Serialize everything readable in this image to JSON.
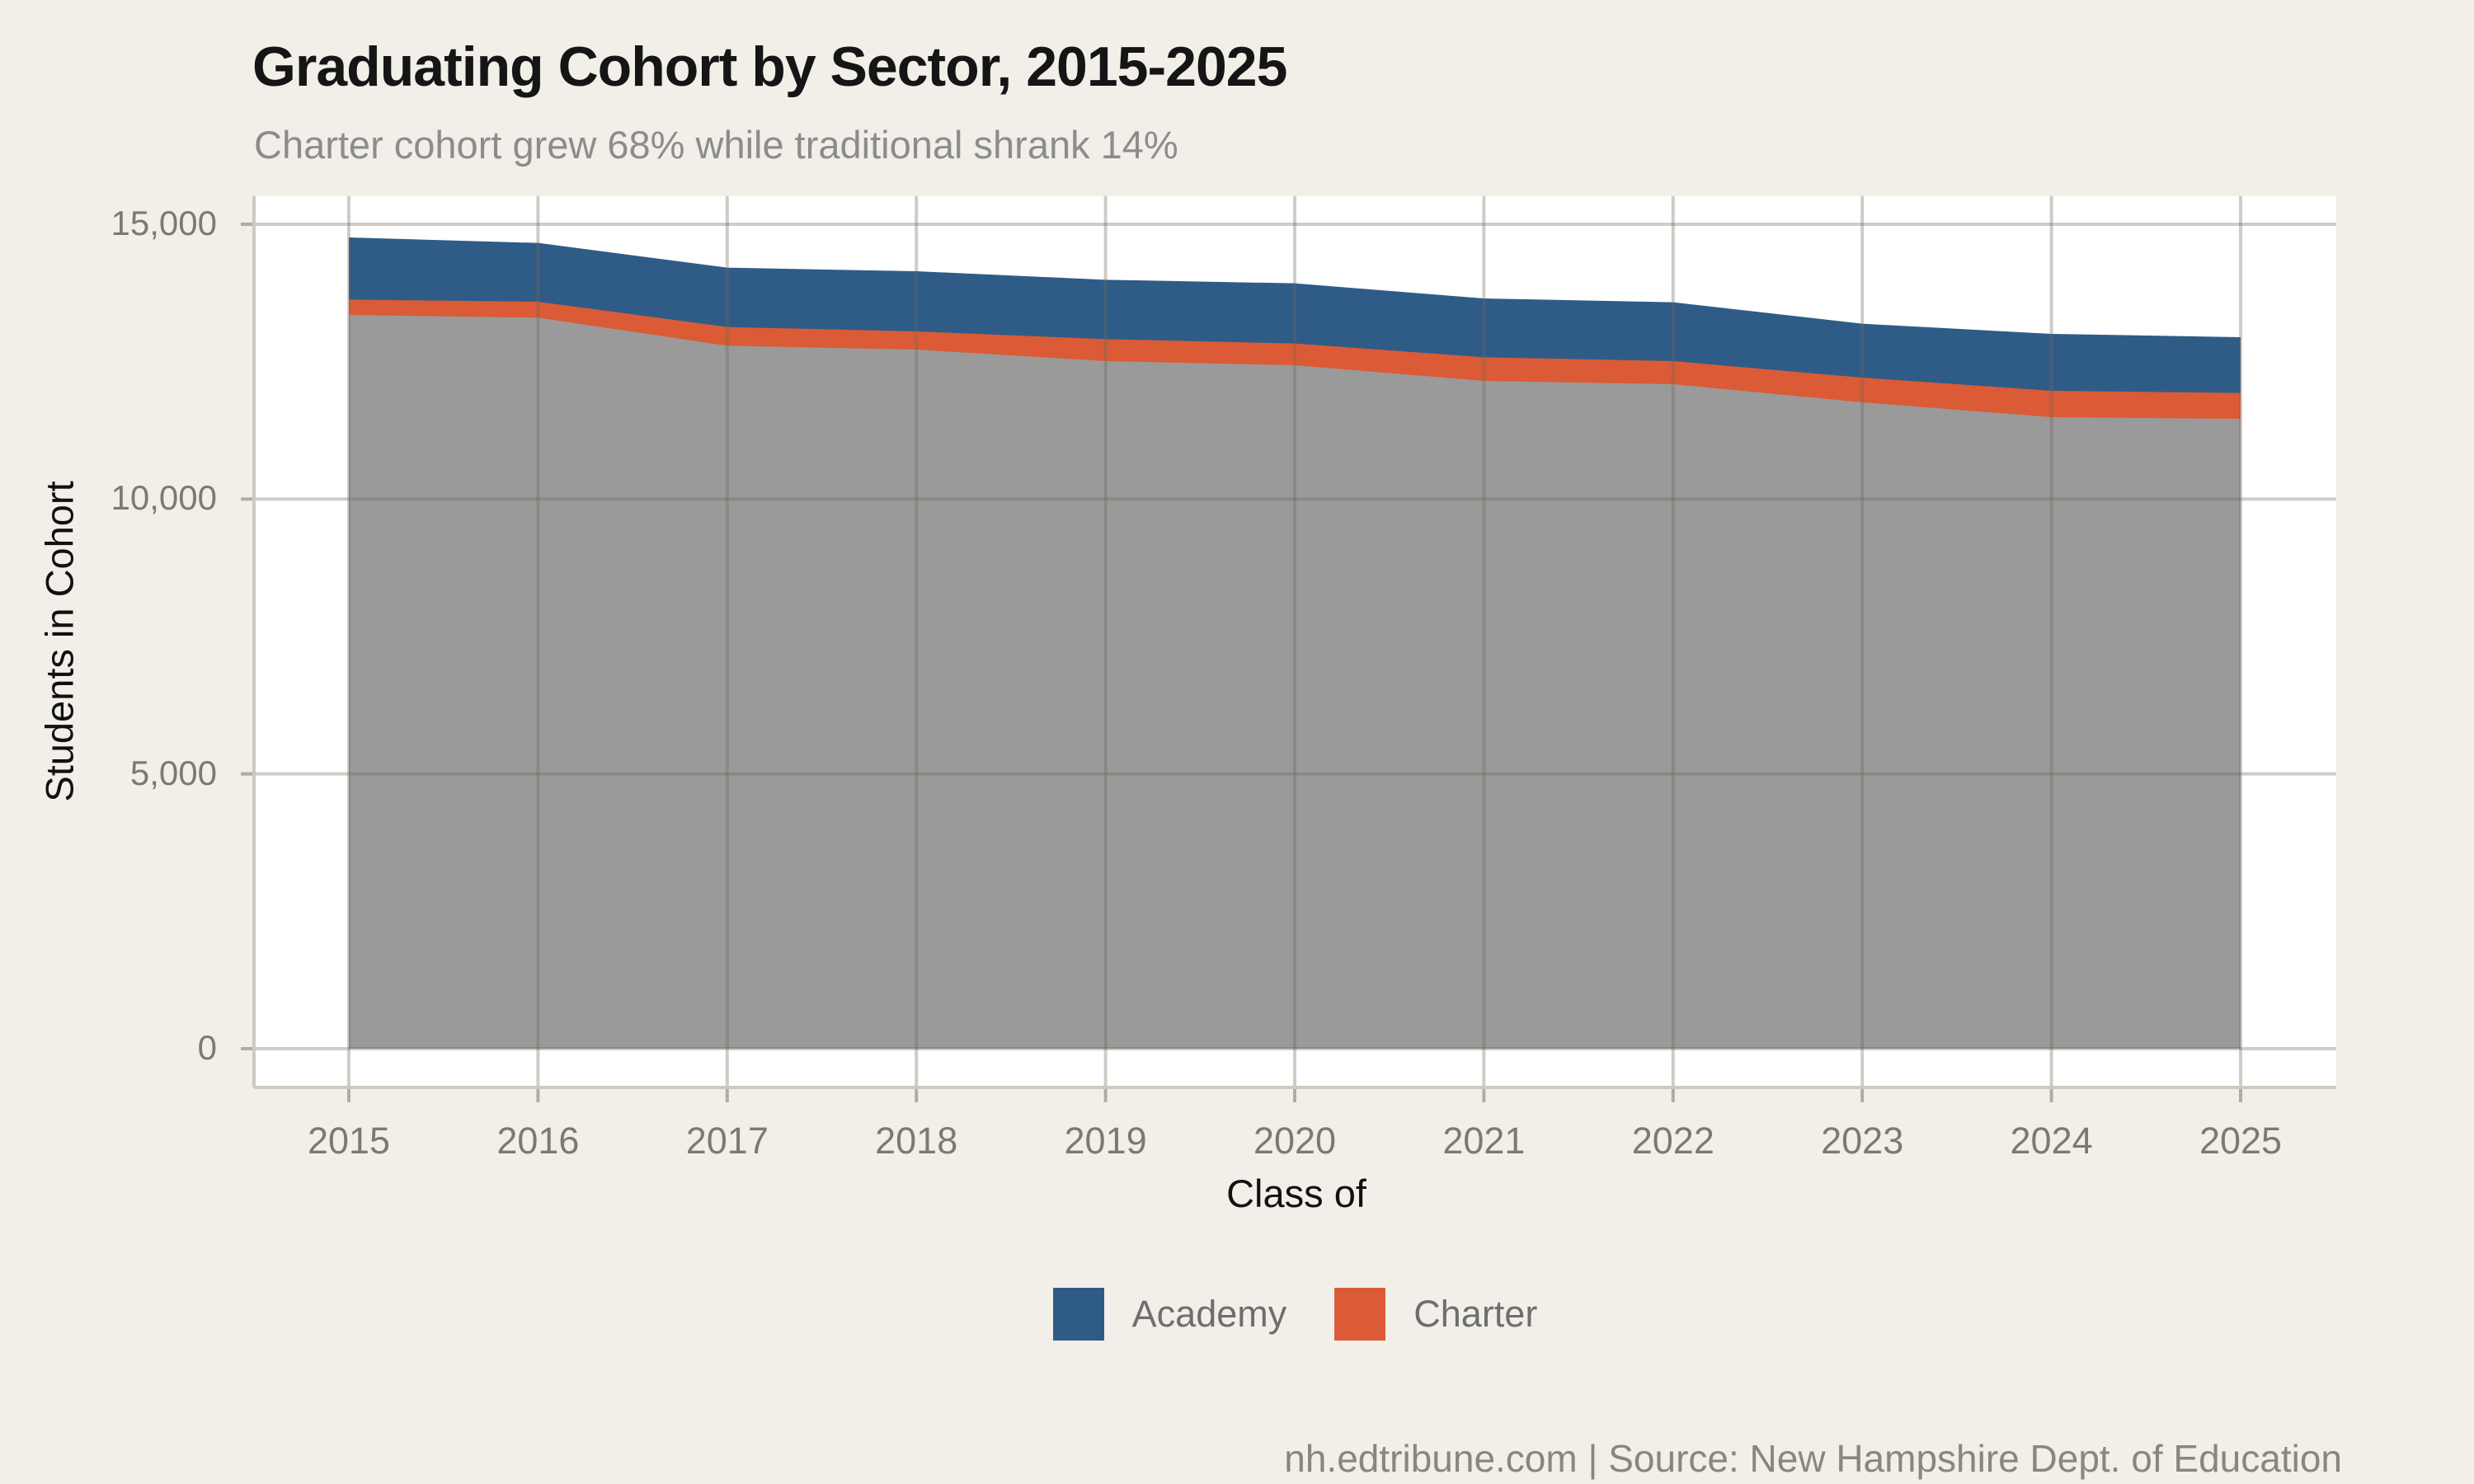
{
  "header": {
    "title": "Graduating Cohort by Sector, 2015-2025",
    "subtitle": "Charter cohort grew 68% while traditional shrank 14%"
  },
  "chart_data": {
    "type": "area",
    "stacked": true,
    "title": "Graduating Cohort by Sector, 2015-2025",
    "subtitle": "Charter cohort grew 68% while traditional shrank 14%",
    "xlabel": "Class of",
    "ylabel": "Students in Cohort",
    "categories": [
      "2015",
      "2016",
      "2017",
      "2018",
      "2019",
      "2020",
      "2021",
      "2022",
      "2023",
      "2024",
      "2025"
    ],
    "series": [
      {
        "name": "Traditional",
        "color": "#9A9A9A",
        "in_legend": false,
        "values": [
          13350,
          13300,
          12790,
          12720,
          12510,
          12435,
          12150,
          12090,
          11760,
          11490,
          11460
        ]
      },
      {
        "name": "Charter",
        "color": "#DA5B36",
        "in_legend": true,
        "values": [
          280,
          290,
          340,
          330,
          400,
          395,
          430,
          420,
          450,
          480,
          470
        ]
      },
      {
        "name": "Academy",
        "color": "#2F5C87",
        "in_legend": true,
        "values": [
          1130,
          1070,
          1080,
          1095,
          1080,
          1095,
          1070,
          1070,
          980,
          1035,
          1015
        ]
      }
    ],
    "ylim": [
      0,
      15000
    ],
    "yticks": [
      0,
      5000,
      10000,
      15000
    ],
    "ytick_labels": [
      "0",
      "5,000",
      "10,000",
      "15,000"
    ],
    "grid": true,
    "legend_position": "bottom",
    "colors": {
      "background": "#F2EFE9",
      "plot_background": "#FFFFFF",
      "gridline": "#CEC8BE",
      "tick": "#B3ABA0",
      "academy_blue": "#2F5C87",
      "charter_orange": "#DA5B36",
      "traditional_gray": "#9A9A9A"
    }
  },
  "legend": {
    "items": [
      {
        "label": "Academy",
        "color": "#2F5C87"
      },
      {
        "label": "Charter",
        "color": "#DA5B36"
      }
    ]
  },
  "footer": {
    "text": "nh.edtribune.com | Source: New Hampshire Dept. of Education"
  }
}
